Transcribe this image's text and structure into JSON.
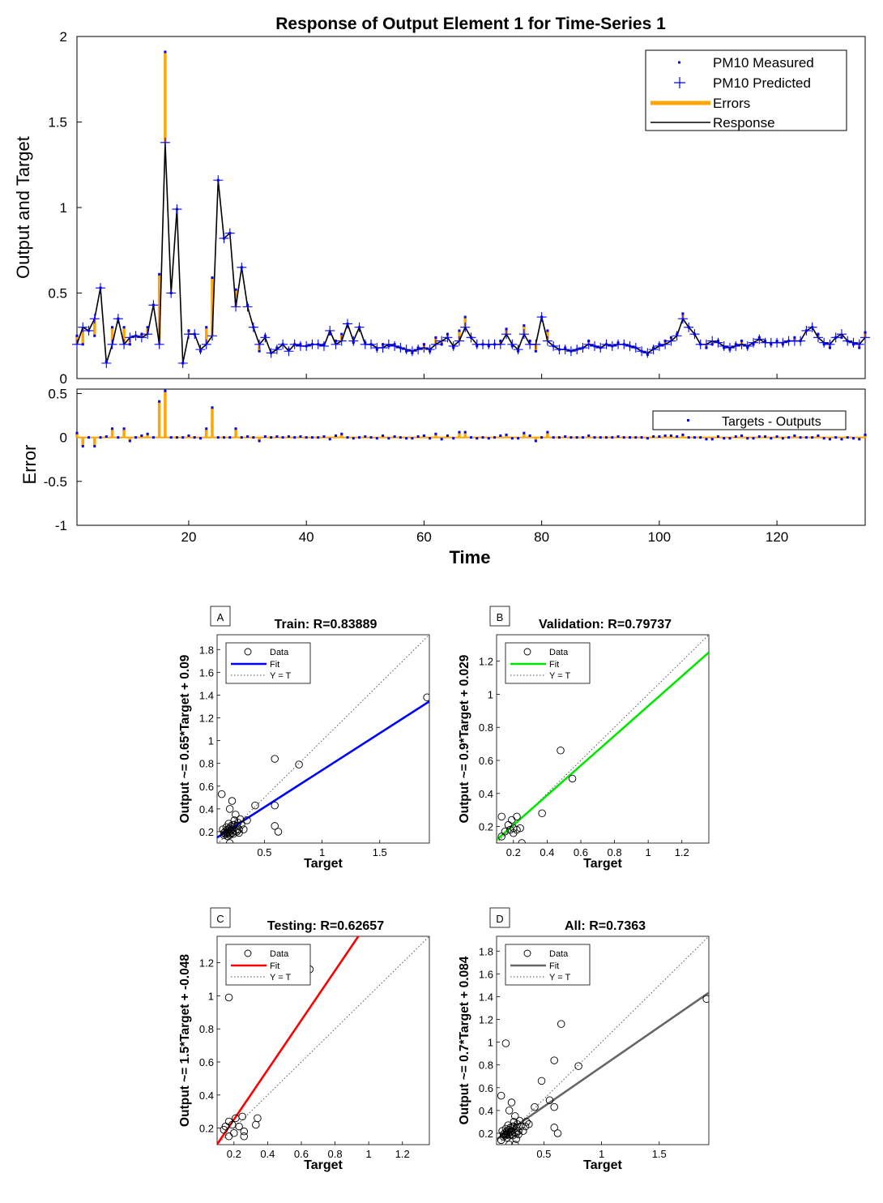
{
  "colors": {
    "measured": "#0000ff",
    "predicted": "#0000ff",
    "errors": "#ffa500",
    "response": "#000000",
    "train_fit": "#0000ff",
    "validation_fit": "#00e600",
    "testing_fit": "#ff0000",
    "all_fit": "#666666",
    "ideal": "#555555"
  },
  "chart_data": [
    {
      "id": "response",
      "type": "line",
      "title": "Response of Output Element 1 for Time-Series 1",
      "ylabel": "Output and Target",
      "xlim": [
        1,
        135
      ],
      "ylim": [
        0,
        2
      ],
      "yticks": [
        "0",
        "0.5",
        "1",
        "1.5",
        "2"
      ],
      "ytick_values": [
        0,
        0.5,
        1,
        1.5,
        2
      ],
      "legend": [
        {
          "label": "PM10 Measured",
          "marker": "dot"
        },
        {
          "label": "PM10 Predicted",
          "marker": "plus"
        },
        {
          "label": "Errors",
          "marker": "thickline"
        },
        {
          "label": "Response",
          "marker": "line"
        }
      ],
      "series": [
        {
          "name": "PM10 Measured",
          "values": [
            0.25,
            0.2,
            0.28,
            0.25,
            0.53,
            0.1,
            0.3,
            0.35,
            0.3,
            0.2,
            0.25,
            0.26,
            0.3,
            0.43,
            0.61,
            1.91,
            0.5,
            0.99,
            0.09,
            0.28,
            0.26,
            0.16,
            0.3,
            0.59,
            1.16,
            0.82,
            0.85,
            0.52,
            0.65,
            0.43,
            0.3,
            0.16,
            0.25,
            0.15,
            0.18,
            0.2,
            0.17,
            0.2,
            0.2,
            0.19,
            0.2,
            0.2,
            0.2,
            0.26,
            0.22,
            0.26,
            0.32,
            0.21,
            0.3,
            0.21,
            0.2,
            0.17,
            0.2,
            0.19,
            0.2,
            0.18,
            0.16,
            0.15,
            0.18,
            0.2,
            0.16,
            0.24,
            0.2,
            0.26,
            0.18,
            0.28,
            0.36,
            0.24,
            0.19,
            0.2,
            0.19,
            0.2,
            0.22,
            0.29,
            0.19,
            0.16,
            0.31,
            0.22,
            0.16,
            0.36,
            0.28,
            0.19,
            0.17,
            0.18,
            0.16,
            0.17,
            0.18,
            0.22,
            0.19,
            0.18,
            0.2,
            0.19,
            0.21,
            0.2,
            0.19,
            0.18,
            0.16,
            0.14,
            0.18,
            0.2,
            0.22,
            0.24,
            0.26,
            0.38,
            0.3,
            0.26,
            0.2,
            0.18,
            0.2,
            0.22,
            0.18,
            0.17,
            0.2,
            0.22,
            0.18,
            0.2,
            0.24,
            0.22,
            0.2,
            0.22,
            0.2,
            0.22,
            0.24,
            0.22,
            0.28,
            0.3,
            0.26,
            0.2,
            0.18,
            0.24,
            0.24,
            0.22,
            0.2,
            0.18,
            0.27
          ]
        },
        {
          "name": "PM10 Predicted",
          "values": [
            0.2,
            0.3,
            0.28,
            0.35,
            0.53,
            0.09,
            0.2,
            0.35,
            0.2,
            0.24,
            0.25,
            0.24,
            0.26,
            0.43,
            0.2,
            1.38,
            0.5,
            0.99,
            0.09,
            0.26,
            0.26,
            0.17,
            0.2,
            0.25,
            1.16,
            0.82,
            0.85,
            0.42,
            0.65,
            0.42,
            0.3,
            0.2,
            0.24,
            0.15,
            0.17,
            0.2,
            0.16,
            0.2,
            0.19,
            0.19,
            0.2,
            0.2,
            0.19,
            0.28,
            0.2,
            0.22,
            0.32,
            0.22,
            0.3,
            0.2,
            0.2,
            0.18,
            0.18,
            0.2,
            0.19,
            0.18,
            0.17,
            0.16,
            0.17,
            0.18,
            0.17,
            0.2,
            0.22,
            0.24,
            0.19,
            0.22,
            0.3,
            0.24,
            0.2,
            0.2,
            0.2,
            0.2,
            0.2,
            0.26,
            0.2,
            0.17,
            0.26,
            0.2,
            0.2,
            0.36,
            0.22,
            0.19,
            0.17,
            0.17,
            0.16,
            0.17,
            0.18,
            0.2,
            0.19,
            0.18,
            0.2,
            0.19,
            0.2,
            0.2,
            0.19,
            0.18,
            0.16,
            0.15,
            0.17,
            0.19,
            0.2,
            0.22,
            0.25,
            0.35,
            0.3,
            0.26,
            0.2,
            0.2,
            0.22,
            0.21,
            0.19,
            0.18,
            0.19,
            0.2,
            0.19,
            0.21,
            0.23,
            0.21,
            0.21,
            0.21,
            0.21,
            0.22,
            0.22,
            0.22,
            0.28,
            0.3,
            0.24,
            0.21,
            0.2,
            0.24,
            0.26,
            0.22,
            0.21,
            0.2,
            0.24
          ]
        }
      ]
    },
    {
      "id": "error",
      "type": "bar",
      "ylabel": "Error",
      "xlabel": "Time",
      "xlim": [
        1,
        135
      ],
      "ylim": [
        -1,
        0.55
      ],
      "xticks": [
        "20",
        "40",
        "60",
        "80",
        "100",
        "120"
      ],
      "xtick_values": [
        20,
        40,
        60,
        80,
        100,
        120
      ],
      "yticks": [
        "-1",
        "-0.5",
        "0",
        "0.5"
      ],
      "ytick_values": [
        -1,
        -0.5,
        0,
        0.5
      ],
      "legend": [
        {
          "label": "Targets - Outputs",
          "marker": "dot"
        }
      ]
    },
    {
      "id": "train",
      "type": "scatter",
      "tag": "A",
      "title": "Train: R=0.83889",
      "xlabel": "Target",
      "ylabel": "Output ~= 0.65*Target + 0.09",
      "xlim": [
        0.09,
        1.93
      ],
      "ylim": [
        0.1,
        1.93
      ],
      "xticks": [
        "0.5",
        "1",
        "1.5"
      ],
      "xtick_values": [
        0.5,
        1,
        1.5
      ],
      "yticks": [
        "0.2",
        "0.4",
        "0.6",
        "0.8",
        "1",
        "1.2",
        "1.4",
        "1.6",
        "1.8"
      ],
      "ytick_values": [
        0.2,
        0.4,
        0.6,
        0.8,
        1,
        1.2,
        1.4,
        1.6,
        1.8
      ],
      "fit": {
        "slope": 0.65,
        "intercept": 0.09,
        "color": "#0000ff"
      },
      "legend": [
        "Data",
        "Fit",
        "Y = T"
      ],
      "points": [
        [
          1.91,
          1.38
        ],
        [
          0.59,
          0.84
        ],
        [
          0.8,
          0.79
        ],
        [
          0.59,
          0.43
        ],
        [
          0.42,
          0.43
        ],
        [
          0.59,
          0.25
        ],
        [
          0.62,
          0.2
        ],
        [
          0.13,
          0.53
        ],
        [
          0.22,
          0.47
        ],
        [
          0.2,
          0.4
        ],
        [
          0.29,
          0.31
        ],
        [
          0.35,
          0.3
        ],
        [
          0.25,
          0.35
        ],
        [
          0.26,
          0.25
        ],
        [
          0.22,
          0.22
        ],
        [
          0.18,
          0.2
        ],
        [
          0.15,
          0.17
        ],
        [
          0.2,
          0.18
        ],
        [
          0.3,
          0.26
        ],
        [
          0.24,
          0.26
        ],
        [
          0.28,
          0.22
        ],
        [
          0.2,
          0.1
        ],
        [
          0.17,
          0.24
        ],
        [
          0.19,
          0.19
        ],
        [
          0.16,
          0.2
        ],
        [
          0.21,
          0.21
        ],
        [
          0.23,
          0.18
        ],
        [
          0.26,
          0.2
        ],
        [
          0.18,
          0.16
        ],
        [
          0.14,
          0.22
        ],
        [
          0.32,
          0.22
        ],
        [
          0.24,
          0.3
        ],
        [
          0.19,
          0.27
        ],
        [
          0.16,
          0.18
        ],
        [
          0.21,
          0.25
        ],
        [
          0.27,
          0.28
        ],
        [
          0.2,
          0.23
        ],
        [
          0.22,
          0.19
        ],
        [
          0.18,
          0.22
        ],
        [
          0.25,
          0.21
        ],
        [
          0.15,
          0.19
        ],
        [
          0.2,
          0.17
        ],
        [
          0.28,
          0.19
        ],
        [
          0.23,
          0.26
        ],
        [
          0.17,
          0.19
        ]
      ]
    },
    {
      "id": "validation",
      "type": "scatter",
      "tag": "B",
      "title": "Validation: R=0.79737",
      "xlabel": "Target",
      "ylabel": "Output ~= 0.9*Target + 0.029",
      "xlim": [
        0.1,
        1.36
      ],
      "ylim": [
        0.1,
        1.36
      ],
      "xticks": [
        "0.2",
        "0.4",
        "0.6",
        "0.8",
        "1",
        "1.2"
      ],
      "xtick_values": [
        0.2,
        0.4,
        0.6,
        0.8,
        1,
        1.2
      ],
      "yticks": [
        "0.2",
        "0.4",
        "0.6",
        "0.8",
        "1",
        "1.2"
      ],
      "ytick_values": [
        0.2,
        0.4,
        0.6,
        0.8,
        1,
        1.2
      ],
      "fit": {
        "slope": 0.9,
        "intercept": 0.029,
        "color": "#00e600"
      },
      "legend": [
        "Data",
        "Fit",
        "Y = T"
      ],
      "points": [
        [
          0.48,
          0.66
        ],
        [
          0.55,
          0.49
        ],
        [
          0.37,
          0.28
        ],
        [
          0.13,
          0.26
        ],
        [
          0.19,
          0.24
        ],
        [
          0.22,
          0.26
        ],
        [
          0.17,
          0.21
        ],
        [
          0.2,
          0.19
        ],
        [
          0.24,
          0.19
        ],
        [
          0.15,
          0.17
        ],
        [
          0.2,
          0.16
        ],
        [
          0.13,
          0.14
        ],
        [
          0.25,
          0.1
        ],
        [
          0.18,
          0.18
        ],
        [
          0.22,
          0.18
        ]
      ]
    },
    {
      "id": "testing",
      "type": "scatter",
      "tag": "C",
      "title": "Testing: R=0.62657",
      "xlabel": "Target",
      "ylabel": "Output ~= 1.5*Target + -0.048",
      "xlim": [
        0.1,
        1.36
      ],
      "ylim": [
        0.1,
        1.36
      ],
      "xticks": [
        "0.2",
        "0.4",
        "0.6",
        "0.8",
        "1",
        "1.2"
      ],
      "xtick_values": [
        0.2,
        0.4,
        0.6,
        0.8,
        1,
        1.2
      ],
      "yticks": [
        "0.2",
        "0.4",
        "0.6",
        "0.8",
        "1",
        "1.2"
      ],
      "ytick_values": [
        0.2,
        0.4,
        0.6,
        0.8,
        1,
        1.2
      ],
      "fit": {
        "slope": 1.5,
        "intercept": -0.048,
        "color": "#ff0000"
      },
      "legend": [
        "Data",
        "Fit",
        "Y = T"
      ],
      "points": [
        [
          0.17,
          0.99
        ],
        [
          0.65,
          1.16
        ],
        [
          0.34,
          0.26
        ],
        [
          0.33,
          0.22
        ],
        [
          0.25,
          0.27
        ],
        [
          0.21,
          0.26
        ],
        [
          0.17,
          0.24
        ],
        [
          0.15,
          0.21
        ],
        [
          0.19,
          0.22
        ],
        [
          0.23,
          0.21
        ],
        [
          0.26,
          0.18
        ],
        [
          0.2,
          0.17
        ],
        [
          0.17,
          0.15
        ],
        [
          0.26,
          0.15
        ],
        [
          0.14,
          0.19
        ]
      ]
    },
    {
      "id": "all",
      "type": "scatter",
      "tag": "D",
      "title": "All: R=0.7363",
      "xlabel": "Target",
      "ylabel": "Output ~= 0.7*Target + 0.084",
      "xlim": [
        0.09,
        1.93
      ],
      "ylim": [
        0.1,
        1.93
      ],
      "xticks": [
        "0.5",
        "1",
        "1.5"
      ],
      "xtick_values": [
        0.5,
        1,
        1.5
      ],
      "yticks": [
        "0.2",
        "0.4",
        "0.6",
        "0.8",
        "1",
        "1.2",
        "1.4",
        "1.6",
        "1.8"
      ],
      "ytick_values": [
        0.2,
        0.4,
        0.6,
        0.8,
        1,
        1.2,
        1.4,
        1.6,
        1.8
      ],
      "fit": {
        "slope": 0.7,
        "intercept": 0.084,
        "color": "#666666"
      },
      "legend": [
        "Data",
        "Fit",
        "Y = T"
      ],
      "points": [
        [
          1.91,
          1.38
        ],
        [
          0.17,
          0.99
        ],
        [
          0.65,
          1.16
        ],
        [
          0.59,
          0.84
        ],
        [
          0.8,
          0.79
        ],
        [
          0.48,
          0.66
        ],
        [
          0.55,
          0.49
        ],
        [
          0.59,
          0.43
        ],
        [
          0.42,
          0.43
        ],
        [
          0.59,
          0.25
        ],
        [
          0.62,
          0.2
        ],
        [
          0.13,
          0.53
        ],
        [
          0.22,
          0.47
        ],
        [
          0.2,
          0.4
        ],
        [
          0.29,
          0.31
        ],
        [
          0.35,
          0.3
        ],
        [
          0.25,
          0.35
        ],
        [
          0.37,
          0.28
        ],
        [
          0.34,
          0.26
        ],
        [
          0.26,
          0.25
        ],
        [
          0.22,
          0.22
        ],
        [
          0.18,
          0.2
        ],
        [
          0.15,
          0.17
        ],
        [
          0.2,
          0.18
        ],
        [
          0.3,
          0.26
        ],
        [
          0.24,
          0.26
        ],
        [
          0.28,
          0.22
        ],
        [
          0.2,
          0.1
        ],
        [
          0.25,
          0.1
        ],
        [
          0.17,
          0.24
        ],
        [
          0.19,
          0.19
        ],
        [
          0.16,
          0.2
        ],
        [
          0.21,
          0.21
        ],
        [
          0.23,
          0.18
        ],
        [
          0.26,
          0.2
        ],
        [
          0.18,
          0.16
        ],
        [
          0.14,
          0.22
        ],
        [
          0.32,
          0.22
        ],
        [
          0.24,
          0.3
        ],
        [
          0.19,
          0.27
        ],
        [
          0.16,
          0.18
        ],
        [
          0.21,
          0.25
        ],
        [
          0.27,
          0.28
        ],
        [
          0.2,
          0.23
        ],
        [
          0.22,
          0.19
        ],
        [
          0.18,
          0.22
        ],
        [
          0.25,
          0.21
        ],
        [
          0.15,
          0.19
        ],
        [
          0.13,
          0.14
        ],
        [
          0.26,
          0.15
        ],
        [
          0.28,
          0.19
        ],
        [
          0.23,
          0.26
        ],
        [
          0.17,
          0.19
        ]
      ]
    }
  ]
}
